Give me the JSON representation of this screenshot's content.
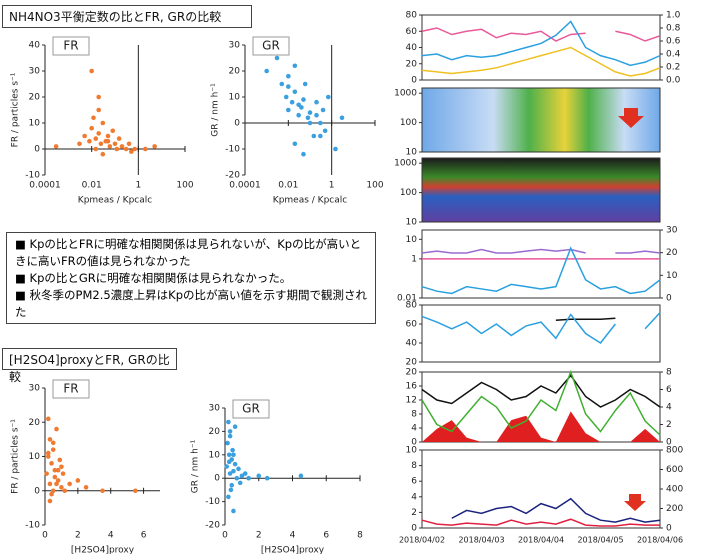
{
  "slide": {
    "heading1": "NH4NO3平衡定数の比とFR, GRの比較",
    "bullets": [
      "Kpの比とFRに明確な相関関係は見られないが、Kpの比が高いときに高いFRの値は見られなかった",
      "Kpの比とGRに明確な相関関係は見られなかった。",
      "秋冬季のPM2.5濃度上昇はKpの比が高い値を示す期間で観測された"
    ],
    "heading2": "[H2SO4]proxyとFR, GRの比較"
  },
  "chart_data": [
    {
      "type": "scatter",
      "panel_label": "FR",
      "x_label": "Kpmeas / Kpcalc",
      "y_label": "FR / particles s⁻¹",
      "xlog": true,
      "xlim": [
        0.0001,
        100
      ],
      "xticks": [
        0.0001,
        0.01,
        1,
        100
      ],
      "ylim": [
        -10,
        40
      ],
      "yticks": [
        -10,
        0,
        10,
        20,
        30,
        40
      ],
      "series": [
        {
          "name": "FR",
          "color": "#f07a30",
          "x": [
            0.0003,
            0.003,
            0.005,
            0.008,
            0.01,
            0.01,
            0.012,
            0.015,
            0.02,
            0.02,
            0.025,
            0.03,
            0.04,
            0.05,
            0.06,
            0.08,
            0.1,
            0.12,
            0.15,
            0.2,
            0.3,
            0.4,
            0.5,
            0.7,
            0.02,
            0.03,
            0.015,
            0.05,
            2,
            5
          ],
          "values": [
            1,
            2,
            5,
            3,
            8,
            30,
            12,
            4,
            20,
            6,
            2,
            10,
            3,
            5,
            1,
            7,
            2,
            0,
            4,
            1,
            0,
            2,
            -1,
            0,
            15,
            -2,
            0,
            3,
            0,
            1
          ]
        }
      ]
    },
    {
      "type": "scatter",
      "panel_label": "GR",
      "x_label": "Kpmeas / Kpcalc",
      "y_label": "GR / nm h⁻¹",
      "xlog": true,
      "xlim": [
        0.0001,
        100
      ],
      "xticks": [
        0.0001,
        0.01,
        1,
        100
      ],
      "ylim": [
        -20,
        30
      ],
      "yticks": [
        -20,
        -10,
        0,
        10,
        20,
        30
      ],
      "series": [
        {
          "name": "GR",
          "color": "#3aa0e0",
          "x": [
            0.001,
            0.003,
            0.005,
            0.008,
            0.01,
            0.01,
            0.015,
            0.02,
            0.02,
            0.03,
            0.04,
            0.05,
            0.06,
            0.08,
            0.1,
            0.15,
            0.2,
            0.3,
            0.4,
            0.5,
            0.7,
            1.5,
            3,
            0.02,
            0.05,
            0.1,
            0.3,
            0.01,
            0.03,
            0.2
          ],
          "values": [
            20,
            25,
            15,
            10,
            18,
            5,
            8,
            22,
            12,
            3,
            6,
            9,
            15,
            2,
            4,
            -5,
            8,
            0,
            5,
            -3,
            10,
            -10,
            2,
            -8,
            -12,
            0,
            -5,
            14,
            7,
            3
          ]
        }
      ]
    },
    {
      "type": "scatter",
      "panel_label": "FR",
      "x_label": "[H2SO4]proxy",
      "y_label": "FR / particles s⁻¹",
      "xlim": [
        0,
        7
      ],
      "xticks": [
        0,
        2,
        4,
        6
      ],
      "ylim": [
        -10,
        30
      ],
      "yticks": [
        -10,
        0,
        10,
        20,
        30
      ],
      "series": [
        {
          "name": "FR",
          "color": "#f07a30",
          "x": [
            0.1,
            0.2,
            0.2,
            0.3,
            0.3,
            0.4,
            0.5,
            0.5,
            0.6,
            0.7,
            0.8,
            0.9,
            1.0,
            1.1,
            1.2,
            1.5,
            2.0,
            2.5,
            3.5,
            0.4,
            0.6,
            0.8,
            0.3,
            0.5,
            1.0,
            5.5,
            0.2,
            0.7
          ],
          "values": [
            5,
            21,
            10,
            15,
            2,
            8,
            12,
            0,
            6,
            18,
            3,
            9,
            1,
            5,
            0,
            2,
            3,
            1,
            0,
            -1,
            4,
            6,
            -3,
            14,
            7,
            0,
            11,
            2
          ]
        }
      ]
    },
    {
      "type": "scatter",
      "panel_label": "GR",
      "x_label": "[H2SO4]proxy",
      "y_label": "GR / nm h⁻¹",
      "xlim": [
        0,
        8
      ],
      "xticks": [
        0,
        2,
        4,
        6,
        8
      ],
      "ylim": [
        -20,
        30
      ],
      "yticks": [
        -20,
        -10,
        0,
        10,
        20,
        30
      ],
      "series": [
        {
          "name": "GR",
          "color": "#3aa0e0",
          "x": [
            0.1,
            0.15,
            0.2,
            0.25,
            0.3,
            0.3,
            0.35,
            0.4,
            0.45,
            0.5,
            0.5,
            0.6,
            0.7,
            0.8,
            0.9,
            1.0,
            1.2,
            1.4,
            2.0,
            2.5,
            4.5,
            0.2,
            0.3,
            0.5,
            0.6,
            0.4,
            0.25
          ],
          "values": [
            5,
            15,
            24,
            10,
            2,
            20,
            -5,
            8,
            12,
            3,
            -14,
            6,
            0,
            4,
            -2,
            1,
            2,
            0,
            1,
            0,
            1,
            -8,
            18,
            10,
            22,
            -3,
            7
          ]
        }
      ]
    },
    {
      "type": "line",
      "ylim": [
        0,
        80
      ],
      "yticks": [
        0,
        20,
        40,
        60,
        80
      ],
      "y2lim": [
        0,
        1
      ],
      "y2ticks": [
        {
          "value": 0,
          "label": "0.0"
        },
        {
          "value": 0.2,
          "label": "0.2"
        },
        {
          "value": 0.4,
          "label": "0.4"
        },
        {
          "value": 0.6,
          "label": "0.6"
        },
        {
          "value": 0.8,
          "label": "0.8"
        },
        {
          "value": 1,
          "label": "1.0"
        }
      ],
      "series": [
        {
          "color": "#e8589a",
          "axis": "y2",
          "values": [
            0.75,
            0.8,
            0.7,
            0.75,
            0.78,
            0.65,
            0.72,
            0.7,
            0.75,
            0.6,
            0.7,
            0.72,
            null,
            0.75,
            0.7,
            0.6,
            0.68
          ]
        },
        {
          "color": "#2aa0e0",
          "values": [
            30,
            32,
            25,
            30,
            28,
            30,
            35,
            40,
            45,
            55,
            72,
            40,
            30,
            25,
            18,
            22,
            30
          ]
        },
        {
          "color": "#f0c020",
          "values": [
            12,
            10,
            8,
            10,
            12,
            15,
            20,
            25,
            30,
            35,
            40,
            30,
            20,
            10,
            5,
            8,
            15
          ]
        }
      ]
    },
    {
      "type": "heatmap",
      "ylog": true,
      "ylim": [
        10,
        1500
      ],
      "yticks": [
        10,
        100,
        1000
      ]
    },
    {
      "type": "heatmap",
      "ylog": true,
      "ylim": [
        10,
        1500
      ],
      "yticks": [
        10,
        100,
        1000
      ]
    },
    {
      "type": "line",
      "ylog": true,
      "ylim": [
        0.01,
        30
      ],
      "yticks": [
        0.01,
        1,
        10
      ],
      "y2lim": [
        0,
        30
      ],
      "y2ticks": [
        0,
        10,
        20,
        30
      ],
      "series": [
        {
          "color": "#9a6ad0",
          "values": [
            2,
            2.5,
            2,
            2,
            3,
            2,
            2,
            2.5,
            3,
            2.5,
            3,
            2,
            null,
            2,
            2,
            2.5,
            2
          ]
        },
        {
          "color": "#e8589a",
          "values": [
            1,
            1,
            1,
            1,
            1,
            1,
            1,
            1,
            1,
            1,
            1,
            1,
            1,
            1,
            1,
            1,
            1
          ]
        },
        {
          "color": "#2aa0e0",
          "axis": "y2",
          "values": [
            5,
            3,
            2,
            5,
            4,
            3,
            6,
            5,
            4,
            5,
            22,
            8,
            4,
            5,
            2,
            3,
            8
          ]
        }
      ]
    },
    {
      "type": "line",
      "ylim": [
        20,
        80
      ],
      "yticks": [
        20,
        40,
        60,
        80
      ],
      "series": [
        {
          "color": "#111111",
          "values": [
            null,
            null,
            null,
            null,
            null,
            null,
            null,
            null,
            null,
            64,
            65,
            65,
            65,
            66,
            null,
            null,
            70
          ]
        },
        {
          "color": "#2aa0e0",
          "values": [
            68,
            62,
            55,
            62,
            50,
            60,
            48,
            58,
            62,
            45,
            70,
            50,
            40,
            60,
            null,
            55,
            72
          ]
        }
      ]
    },
    {
      "type": "line",
      "ylim": [
        0,
        20
      ],
      "yticks": [
        0,
        4,
        8,
        12,
        16,
        20
      ],
      "y2lim": [
        0,
        8
      ],
      "y2ticks": [
        0,
        2,
        4,
        6,
        8
      ],
      "series": [
        {
          "color": "#e02020",
          "axis": "y2",
          "fill": true,
          "values": [
            0,
            1.5,
            2.5,
            0.5,
            0,
            0,
            2.5,
            3,
            0.5,
            0,
            3.5,
            1,
            0,
            0,
            0,
            1.5,
            0
          ]
        },
        {
          "color": "#111111",
          "values": [
            15,
            12,
            11,
            14,
            17,
            15,
            12,
            13,
            16,
            14,
            19,
            13,
            10,
            12,
            15,
            13,
            10
          ]
        },
        {
          "color": "#40b030",
          "values": [
            12,
            5,
            3,
            8,
            13,
            10,
            4,
            6,
            12,
            9,
            20,
            8,
            3,
            9,
            14,
            6,
            2
          ]
        }
      ]
    },
    {
      "type": "line",
      "ylim": [
        0,
        10
      ],
      "yticks": [
        0,
        2,
        4,
        6,
        8,
        10
      ],
      "y2lim": [
        0,
        800
      ],
      "y2ticks": [
        0,
        200,
        400,
        600,
        800
      ],
      "categories": [
        "2018/04/02",
        null,
        null,
        null,
        "2018/04/03",
        null,
        null,
        null,
        "2018/04/04",
        null,
        null,
        null,
        "2018/04/05",
        null,
        null,
        null,
        "2018/04/06"
      ],
      "series": [
        {
          "color": "#1a237e",
          "axis": "y2",
          "values": [
            null,
            null,
            100,
            180,
            150,
            200,
            220,
            150,
            250,
            200,
            300,
            150,
            80,
            60,
            100,
            60,
            80
          ]
        },
        {
          "color": "#e02040",
          "axis": "y2",
          "values": [
            80,
            40,
            30,
            50,
            40,
            30,
            80,
            40,
            60,
            40,
            90,
            30,
            20,
            20,
            40,
            30,
            30
          ]
        }
      ]
    }
  ]
}
